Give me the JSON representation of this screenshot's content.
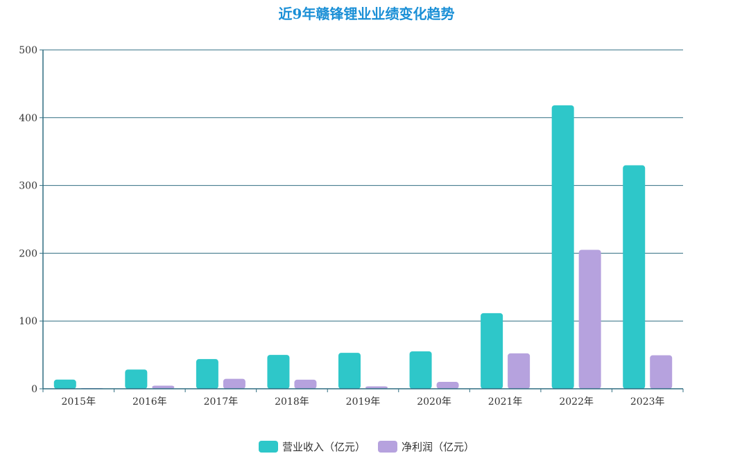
{
  "colors": {
    "title": "#1a8fd6",
    "revenue": "#2ec7c9",
    "profit": "#b6a2de",
    "grid": "#2f6d80"
  },
  "chart_data": {
    "type": "bar",
    "title": "近9年赣锋锂业业绩变化趋势",
    "categories": [
      "2015年",
      "2016年",
      "2017年",
      "2018年",
      "2019年",
      "2020年",
      "2021年",
      "2022年",
      "2023年"
    ],
    "series": [
      {
        "name": "营业收入（亿元）",
        "color": "#2ec7c9",
        "values": [
          13.5,
          28.4,
          43.8,
          50.0,
          53.1,
          55.2,
          111.6,
          418.2,
          329.7
        ]
      },
      {
        "name": "净利润（亿元）",
        "color": "#b6a2de",
        "values": [
          1.0,
          4.6,
          14.7,
          13.4,
          3.6,
          10.2,
          52.3,
          205.0,
          49.5
        ]
      }
    ],
    "ylim": [
      0,
      500
    ],
    "yticks": [
      0,
      100,
      200,
      300,
      400,
      500
    ],
    "grid": true,
    "legend": "bottom-center"
  }
}
